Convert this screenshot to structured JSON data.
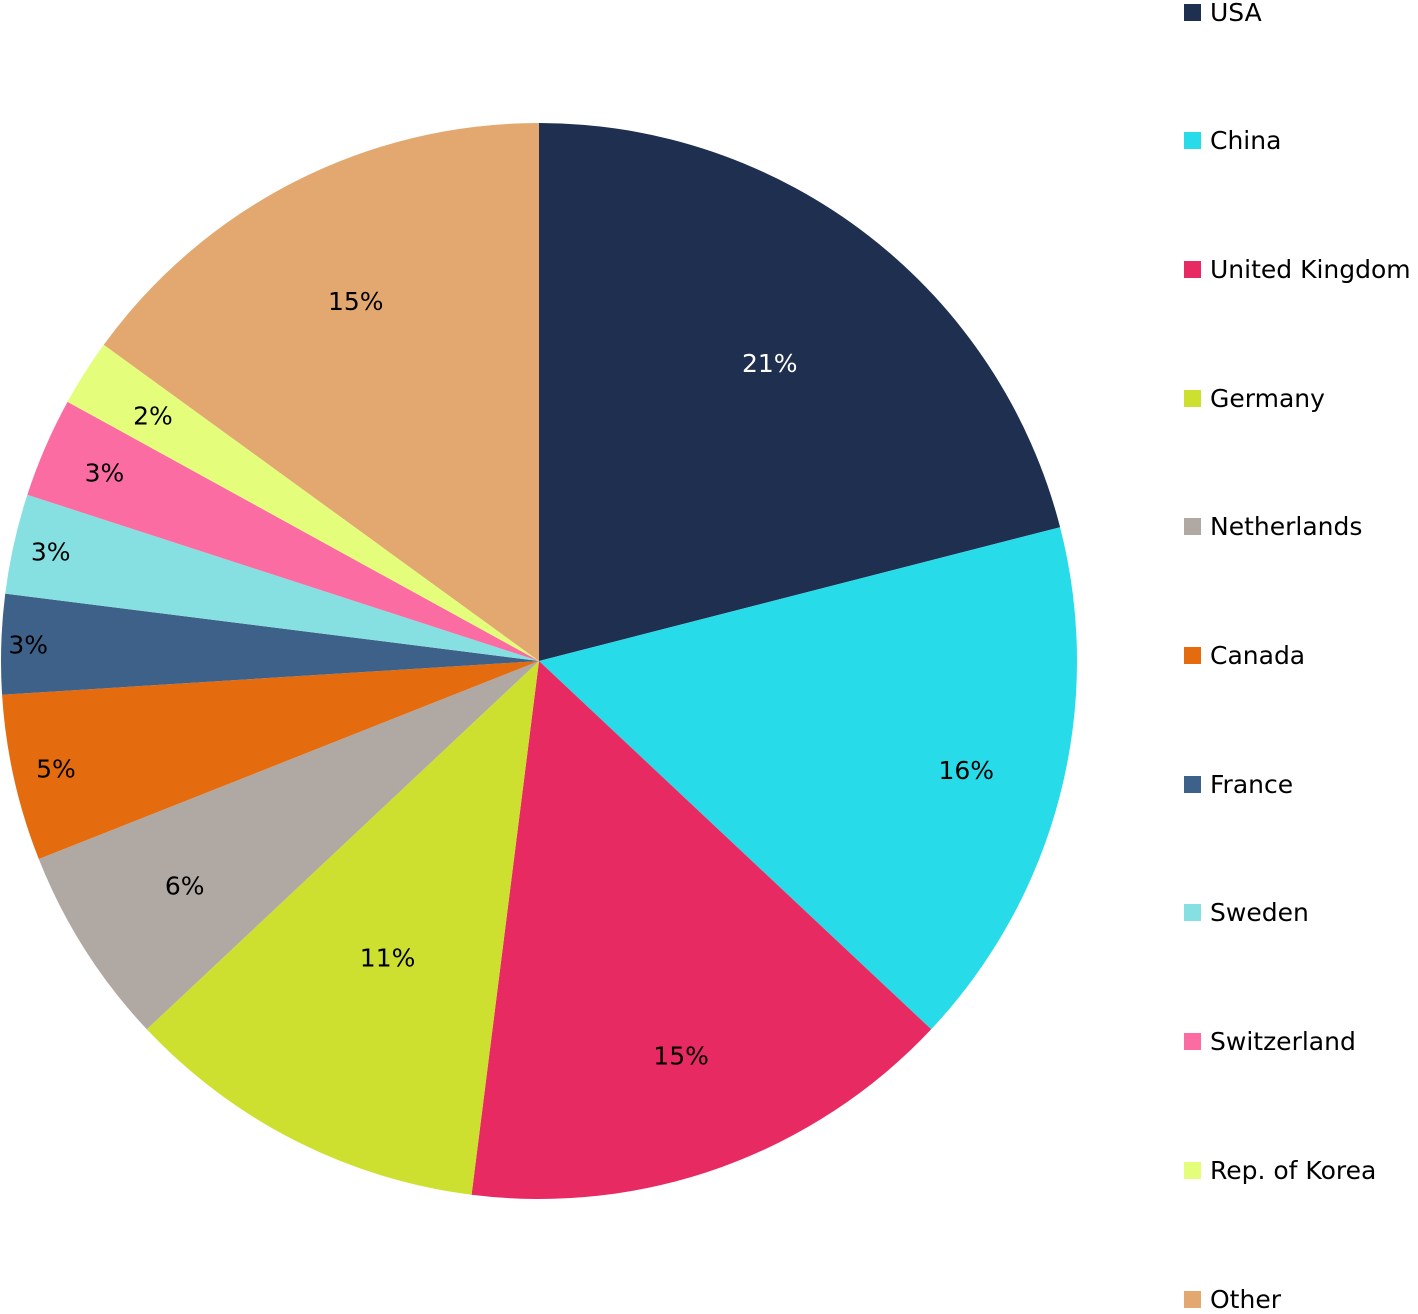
{
  "chart_data": {
    "type": "pie",
    "start_angle_deg": 0,
    "direction": "clockwise",
    "legend_position": "right",
    "slices": [
      {
        "name": "USA",
        "value": 21,
        "label": "21%",
        "color": "#1f2f50",
        "label_color": "#ffffff"
      },
      {
        "name": "China",
        "value": 16,
        "label": "16%",
        "color": "#27dbe8",
        "label_color": "#000000"
      },
      {
        "name": "United Kingdom",
        "value": 15,
        "label": "15%",
        "color": "#e82a62",
        "label_color": "#000000"
      },
      {
        "name": "Germany",
        "value": 11,
        "label": "11%",
        "color": "#cde02f",
        "label_color": "#000000"
      },
      {
        "name": "Netherlands",
        "value": 6,
        "label": "6%",
        "color": "#b0a8a2",
        "label_color": "#000000"
      },
      {
        "name": "Canada",
        "value": 5,
        "label": "5%",
        "color": "#e46c0f",
        "label_color": "#000000"
      },
      {
        "name": "France",
        "value": 3,
        "label": "3%",
        "color": "#3e6189",
        "label_color": "#000000"
      },
      {
        "name": "Sweden",
        "value": 3,
        "label": "3%",
        "color": "#86dfe0",
        "label_color": "#000000"
      },
      {
        "name": "Switzerland",
        "value": 3,
        "label": "3%",
        "color": "#fb6ca3",
        "label_color": "#000000"
      },
      {
        "name": "Rep. of Korea",
        "value": 2,
        "label": "2%",
        "color": "#e4fe7c",
        "label_color": "#000000"
      },
      {
        "name": "Other",
        "value": 15,
        "label": "15%",
        "color": "#e2a870",
        "label_color": "#000000"
      }
    ]
  }
}
